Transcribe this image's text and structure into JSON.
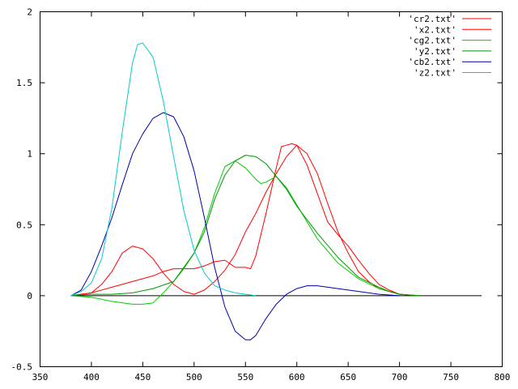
{
  "chart_data": {
    "type": "line",
    "title": "",
    "xlabel": "",
    "ylabel": "",
    "xlim": [
      350,
      800
    ],
    "ylim": [
      -0.5,
      2
    ],
    "x_ticks": [
      350,
      400,
      450,
      500,
      550,
      600,
      650,
      700,
      750,
      800
    ],
    "y_ticks": [
      -0.5,
      0,
      0.5,
      1,
      1.5,
      2
    ],
    "x_tick_labels": [
      "350",
      "400",
      "450",
      "500",
      "550",
      "600",
      "650",
      "700",
      "750",
      "800"
    ],
    "y_tick_labels": [
      "-0.5",
      "0",
      "0.5",
      "1",
      "1.5",
      "2"
    ],
    "grid": false,
    "legend_position": "top-right",
    "zero_line": {
      "from": 380,
      "to": 780
    },
    "series": [
      {
        "name": "'cr2.txt'",
        "color": "#ff0000",
        "points": [
          [
            380,
            0
          ],
          [
            400,
            0.02
          ],
          [
            420,
            0.06
          ],
          [
            440,
            0.1
          ],
          [
            460,
            0.14
          ],
          [
            470,
            0.17
          ],
          [
            480,
            0.19
          ],
          [
            500,
            0.19
          ],
          [
            510,
            0.21
          ],
          [
            520,
            0.24
          ],
          [
            530,
            0.25
          ],
          [
            540,
            0.2
          ],
          [
            550,
            0.2
          ],
          [
            555,
            0.19
          ],
          [
            560,
            0.28
          ],
          [
            570,
            0.58
          ],
          [
            580,
            0.9
          ],
          [
            585,
            1.05
          ],
          [
            590,
            1.06
          ],
          [
            595,
            1.07
          ],
          [
            600,
            1.06
          ],
          [
            610,
            0.92
          ],
          [
            620,
            0.72
          ],
          [
            630,
            0.52
          ],
          [
            640,
            0.43
          ],
          [
            650,
            0.35
          ],
          [
            660,
            0.25
          ],
          [
            670,
            0.16
          ],
          [
            680,
            0.08
          ],
          [
            690,
            0.04
          ],
          [
            700,
            0.01
          ],
          [
            720,
            0
          ]
        ]
      },
      {
        "name": "'x2.txt'",
        "color": "#ff0000",
        "points": [
          [
            380,
            0
          ],
          [
            400,
            0.02
          ],
          [
            410,
            0.08
          ],
          [
            420,
            0.17
          ],
          [
            430,
            0.3
          ],
          [
            440,
            0.35
          ],
          [
            450,
            0.33
          ],
          [
            460,
            0.26
          ],
          [
            470,
            0.16
          ],
          [
            480,
            0.08
          ],
          [
            490,
            0.03
          ],
          [
            500,
            0.01
          ],
          [
            510,
            0.04
          ],
          [
            520,
            0.1
          ],
          [
            530,
            0.18
          ],
          [
            540,
            0.29
          ],
          [
            550,
            0.45
          ],
          [
            560,
            0.58
          ],
          [
            570,
            0.73
          ],
          [
            580,
            0.86
          ],
          [
            590,
            0.98
          ],
          [
            600,
            1.06
          ],
          [
            610,
            1.0
          ],
          [
            620,
            0.86
          ],
          [
            630,
            0.65
          ],
          [
            640,
            0.45
          ],
          [
            650,
            0.3
          ],
          [
            660,
            0.17
          ],
          [
            670,
            0.1
          ],
          [
            680,
            0.05
          ],
          [
            690,
            0.03
          ],
          [
            700,
            0.01
          ],
          [
            720,
            0
          ]
        ]
      },
      {
        "name": "'cg2.txt'",
        "color": "#00cc00",
        "points": [
          [
            380,
            0
          ],
          [
            400,
            -0.01
          ],
          [
            420,
            -0.04
          ],
          [
            440,
            -0.06
          ],
          [
            450,
            -0.06
          ],
          [
            460,
            -0.05
          ],
          [
            470,
            0.02
          ],
          [
            480,
            0.1
          ],
          [
            490,
            0.19
          ],
          [
            500,
            0.3
          ],
          [
            510,
            0.48
          ],
          [
            520,
            0.72
          ],
          [
            530,
            0.91
          ],
          [
            540,
            0.95
          ],
          [
            550,
            0.9
          ],
          [
            560,
            0.82
          ],
          [
            565,
            0.79
          ],
          [
            570,
            0.8
          ],
          [
            580,
            0.84
          ],
          [
            590,
            0.76
          ],
          [
            600,
            0.64
          ],
          [
            620,
            0.4
          ],
          [
            640,
            0.23
          ],
          [
            660,
            0.12
          ],
          [
            680,
            0.05
          ],
          [
            700,
            0.01
          ],
          [
            720,
            0
          ]
        ]
      },
      {
        "name": "'y2.txt'",
        "color": "#009900",
        "points": [
          [
            380,
            0
          ],
          [
            400,
            0.01
          ],
          [
            420,
            0.01
          ],
          [
            440,
            0.02
          ],
          [
            460,
            0.05
          ],
          [
            480,
            0.1
          ],
          [
            500,
            0.3
          ],
          [
            510,
            0.45
          ],
          [
            520,
            0.68
          ],
          [
            530,
            0.85
          ],
          [
            540,
            0.95
          ],
          [
            550,
            0.99
          ],
          [
            560,
            0.98
          ],
          [
            570,
            0.93
          ],
          [
            580,
            0.84
          ],
          [
            590,
            0.75
          ],
          [
            600,
            0.63
          ],
          [
            620,
            0.44
          ],
          [
            640,
            0.27
          ],
          [
            660,
            0.13
          ],
          [
            680,
            0.06
          ],
          [
            690,
            0.03
          ],
          [
            700,
            0.01
          ],
          [
            720,
            0
          ]
        ]
      },
      {
        "name": "'cb2.txt'",
        "color": "#0000aa",
        "points": [
          [
            380,
            0
          ],
          [
            390,
            0.04
          ],
          [
            400,
            0.17
          ],
          [
            410,
            0.35
          ],
          [
            420,
            0.55
          ],
          [
            430,
            0.78
          ],
          [
            440,
            1.0
          ],
          [
            450,
            1.14
          ],
          [
            460,
            1.25
          ],
          [
            470,
            1.29
          ],
          [
            480,
            1.26
          ],
          [
            490,
            1.12
          ],
          [
            500,
            0.88
          ],
          [
            510,
            0.55
          ],
          [
            520,
            0.2
          ],
          [
            530,
            -0.08
          ],
          [
            540,
            -0.25
          ],
          [
            550,
            -0.31
          ],
          [
            555,
            -0.31
          ],
          [
            560,
            -0.28
          ],
          [
            570,
            -0.16
          ],
          [
            580,
            -0.06
          ],
          [
            590,
            0.01
          ],
          [
            600,
            0.05
          ],
          [
            610,
            0.07
          ],
          [
            620,
            0.07
          ],
          [
            630,
            0.06
          ],
          [
            640,
            0.05
          ],
          [
            660,
            0.03
          ],
          [
            680,
            0.01
          ],
          [
            700,
            0
          ]
        ]
      },
      {
        "name": "'z2.txt'",
        "color": "#00cccc",
        "points": [
          [
            380,
            0
          ],
          [
            390,
            0.03
          ],
          [
            400,
            0.09
          ],
          [
            410,
            0.26
          ],
          [
            420,
            0.62
          ],
          [
            430,
            1.15
          ],
          [
            440,
            1.64
          ],
          [
            445,
            1.77
          ],
          [
            450,
            1.78
          ],
          [
            460,
            1.68
          ],
          [
            470,
            1.37
          ],
          [
            480,
            0.98
          ],
          [
            490,
            0.6
          ],
          [
            500,
            0.32
          ],
          [
            510,
            0.16
          ],
          [
            520,
            0.07
          ],
          [
            530,
            0.04
          ],
          [
            540,
            0.02
          ],
          [
            550,
            0.01
          ],
          [
            560,
            0
          ]
        ]
      }
    ]
  }
}
